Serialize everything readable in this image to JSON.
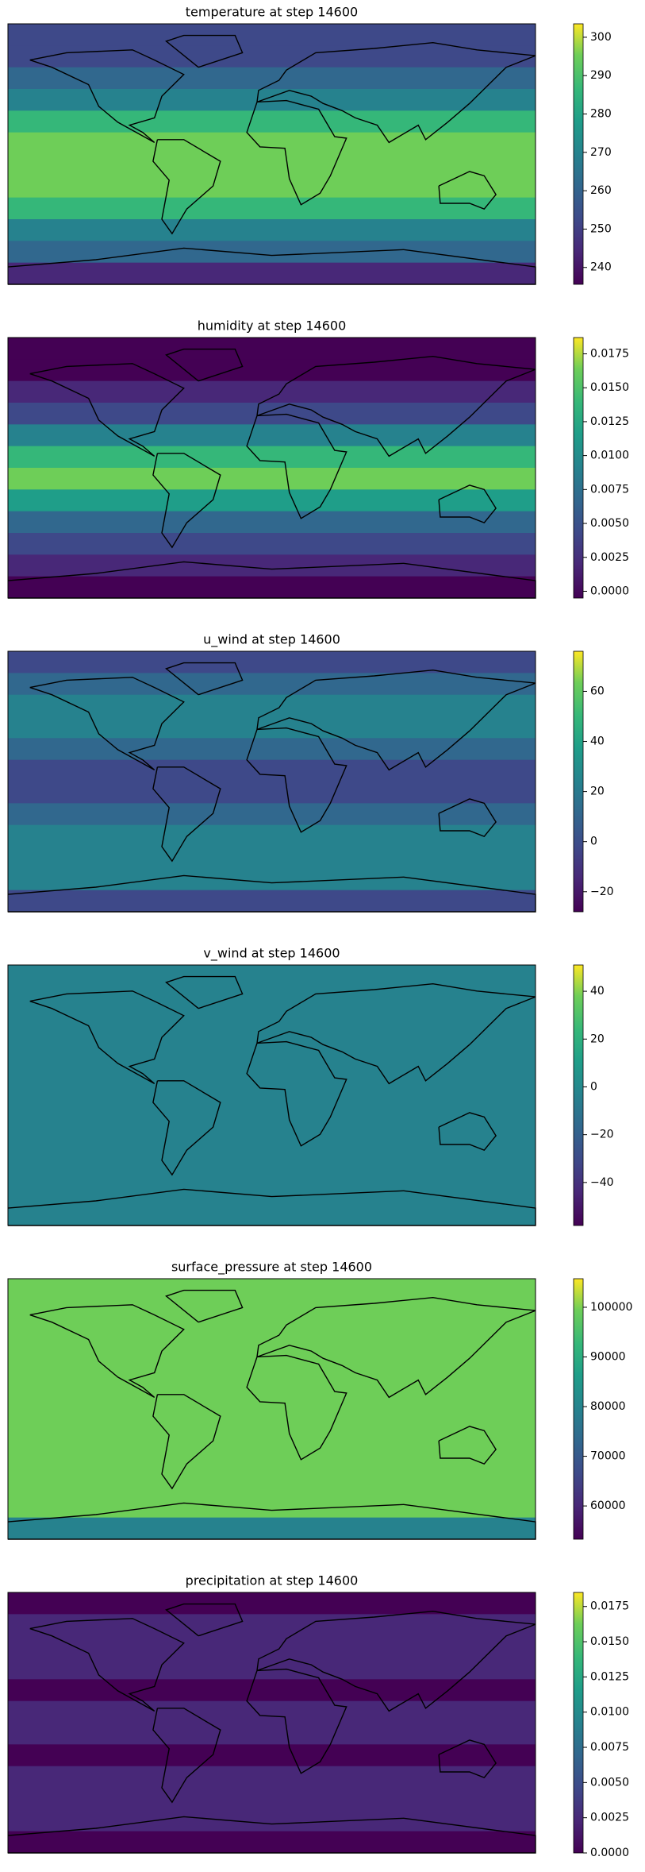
{
  "chart_data": [
    {
      "type": "heatmap",
      "title": "temperature at step 14600",
      "colormap": "viridis",
      "clim": [
        235.6,
        303.5
      ],
      "cticks": [
        240,
        250,
        260,
        270,
        280,
        290,
        300
      ]
    },
    {
      "type": "heatmap",
      "title": "humidity at step 14600",
      "colormap": "viridis",
      "clim": [
        -0.0005,
        0.0187
      ],
      "cticks": [
        {
          "value": 0,
          "label": "0.0000"
        },
        {
          "value": 0.0025,
          "label": "0.0025"
        },
        {
          "value": 0.005,
          "label": "0.0050"
        },
        {
          "value": 0.0075,
          "label": "0.0075"
        },
        {
          "value": 0.01,
          "label": "0.0100"
        },
        {
          "value": 0.0125,
          "label": "0.0125"
        },
        {
          "value": 0.015,
          "label": "0.0150"
        },
        {
          "value": 0.0175,
          "label": "0.0175"
        }
      ]
    },
    {
      "type": "heatmap",
      "title": "u_wind at step 14600",
      "colormap": "viridis",
      "clim": [
        -28,
        76
      ],
      "cticks": [
        {
          "value": -20,
          "label": "−20"
        },
        0,
        20,
        40,
        60
      ]
    },
    {
      "type": "heatmap",
      "title": "v_wind at step 14600",
      "colormap": "viridis",
      "clim": [
        -58,
        51
      ],
      "cticks": [
        {
          "value": -40,
          "label": "−40"
        },
        {
          "value": -20,
          "label": "−20"
        },
        0,
        20,
        40
      ]
    },
    {
      "type": "heatmap",
      "title": "surface_pressure at step 14600",
      "colormap": "viridis",
      "clim": [
        53300,
        105750
      ],
      "cticks": [
        60000,
        70000,
        80000,
        90000,
        100000
      ]
    },
    {
      "type": "heatmap",
      "title": "precipitation at step 14600",
      "colormap": "viridis",
      "clim": [
        0,
        0.0185
      ],
      "cticks": [
        {
          "value": 0,
          "label": "0.0000"
        },
        {
          "value": 0.0025,
          "label": "0.0025"
        },
        {
          "value": 0.005,
          "label": "0.0050"
        },
        {
          "value": 0.0075,
          "label": "0.0075"
        },
        {
          "value": 0.01,
          "label": "0.0100"
        },
        {
          "value": 0.0125,
          "label": "0.0125"
        },
        {
          "value": 0.015,
          "label": "0.0150"
        },
        {
          "value": 0.0175,
          "label": "0.0175"
        }
      ]
    }
  ]
}
